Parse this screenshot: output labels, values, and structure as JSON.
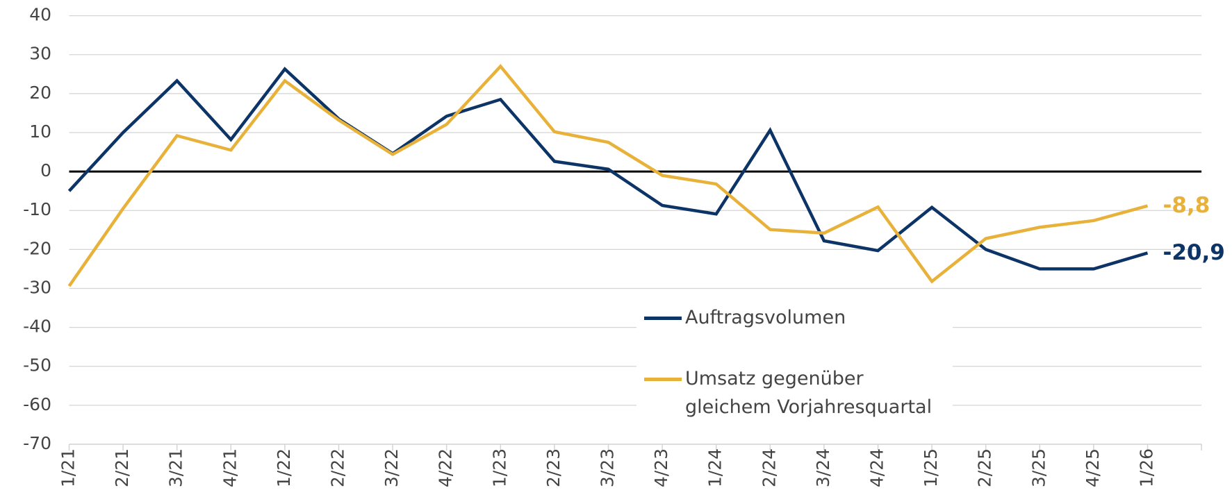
{
  "chart_data": {
    "type": "line",
    "categories": [
      "1/21",
      "2/21",
      "3/21",
      "4/21",
      "1/22",
      "2/22",
      "3/22",
      "4/22",
      "1/23",
      "2/23",
      "3/23",
      "4/23",
      "1/24",
      "2/24",
      "3/24",
      "4/24",
      "1/25",
      "2/25",
      "3/25",
      "4/25",
      "1/26"
    ],
    "series": [
      {
        "name": "Auftragsvolumen",
        "color": "#0d3466",
        "values": [
          -5,
          10,
          23.3,
          8.2,
          26.3,
          13.5,
          4.6,
          14.2,
          18.5,
          2.6,
          0.6,
          -8.7,
          -10.9,
          10.6,
          -17.8,
          -20.3,
          -9.2,
          -20,
          -25,
          -25,
          -20.9
        ],
        "value_labels": [
          null,
          null,
          null,
          null,
          null,
          null,
          null,
          null,
          null,
          null,
          null,
          null,
          null,
          null,
          null,
          null,
          null,
          null,
          null,
          null,
          "-20,9"
        ]
      },
      {
        "name": "Umsatz gegenüber gleichem Vorjahresquartal",
        "color": "#e8b23a",
        "values": [
          -29.4,
          -9.5,
          9.2,
          5.5,
          23.3,
          13.2,
          4.4,
          12.1,
          27,
          10.2,
          7.5,
          -1,
          -3.2,
          -14.9,
          -15.8,
          -9.1,
          -28.2,
          -17.2,
          -14.3,
          -12.6,
          -8.8
        ],
        "value_labels": [
          null,
          null,
          null,
          null,
          null,
          null,
          null,
          null,
          null,
          null,
          null,
          null,
          null,
          null,
          null,
          null,
          null,
          null,
          null,
          null,
          "-8,8"
        ]
      }
    ],
    "ylim": [
      -70,
      40
    ],
    "yticks": [
      40,
      30,
      20,
      10,
      0,
      -10,
      -20,
      -30,
      -40,
      -50,
      -60,
      -70
    ],
    "grid": true
  }
}
